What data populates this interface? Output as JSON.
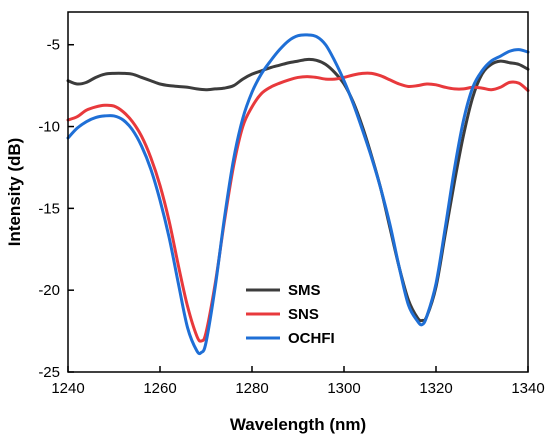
{
  "chart_data": {
    "type": "line",
    "title": "",
    "xlabel": "Wavelength (nm)",
    "ylabel": "Intensity (dB)",
    "xlim": [
      1240,
      1340
    ],
    "ylim": [
      -25,
      -3
    ],
    "xticks": [
      1240,
      1260,
      1280,
      1300,
      1320,
      1340
    ],
    "yticks": [
      -25,
      -20,
      -15,
      -10,
      -5
    ],
    "legend": "lower-center",
    "grid": false,
    "series": [
      {
        "name": "SMS",
        "color": "#3c3c3c",
        "x": [
          1240,
          1242,
          1244,
          1246,
          1248,
          1250,
          1252,
          1254,
          1256,
          1258,
          1260,
          1262,
          1264,
          1266,
          1268,
          1270,
          1272,
          1274,
          1276,
          1278,
          1280,
          1282,
          1284,
          1286,
          1288,
          1290,
          1292,
          1294,
          1296,
          1298,
          1300,
          1302,
          1304,
          1306,
          1308,
          1310,
          1312,
          1314,
          1316,
          1317,
          1318,
          1320,
          1322,
          1324,
          1326,
          1328,
          1330,
          1332,
          1334,
          1336,
          1338,
          1340
        ],
        "y": [
          -7.2,
          -7.4,
          -7.3,
          -7.0,
          -6.8,
          -6.75,
          -6.75,
          -6.8,
          -7.0,
          -7.2,
          -7.4,
          -7.5,
          -7.55,
          -7.6,
          -7.7,
          -7.75,
          -7.7,
          -7.65,
          -7.5,
          -7.1,
          -6.8,
          -6.6,
          -6.4,
          -6.25,
          -6.1,
          -6.0,
          -5.9,
          -5.95,
          -6.2,
          -6.7,
          -7.4,
          -8.5,
          -10.0,
          -11.8,
          -13.8,
          -16.2,
          -18.6,
          -20.6,
          -21.7,
          -21.85,
          -21.6,
          -19.8,
          -16.6,
          -13.4,
          -10.5,
          -8.2,
          -6.8,
          -6.2,
          -6.0,
          -6.1,
          -6.2,
          -6.5
        ]
      },
      {
        "name": "SNS",
        "color": "#e8393c",
        "x": [
          1240,
          1242,
          1244,
          1246,
          1248,
          1250,
          1252,
          1254,
          1256,
          1258,
          1260,
          1262,
          1264,
          1266,
          1268,
          1269,
          1270,
          1272,
          1274,
          1276,
          1278,
          1280,
          1282,
          1284,
          1286,
          1288,
          1290,
          1292,
          1294,
          1296,
          1298,
          1300,
          1302,
          1304,
          1306,
          1308,
          1310,
          1312,
          1314,
          1316,
          1318,
          1320,
          1322,
          1324,
          1326,
          1328,
          1330,
          1332,
          1334,
          1336,
          1338,
          1340
        ],
        "y": [
          -9.6,
          -9.4,
          -9.0,
          -8.8,
          -8.7,
          -8.75,
          -9.1,
          -9.7,
          -10.6,
          -11.9,
          -13.6,
          -15.8,
          -18.5,
          -21.0,
          -22.8,
          -23.1,
          -22.6,
          -19.6,
          -15.8,
          -12.4,
          -10.0,
          -8.8,
          -8.0,
          -7.6,
          -7.35,
          -7.15,
          -7.0,
          -6.95,
          -7.0,
          -7.1,
          -7.1,
          -7.0,
          -6.85,
          -6.75,
          -6.75,
          -6.9,
          -7.15,
          -7.4,
          -7.55,
          -7.5,
          -7.4,
          -7.45,
          -7.6,
          -7.7,
          -7.7,
          -7.6,
          -7.65,
          -7.75,
          -7.6,
          -7.3,
          -7.35,
          -7.8
        ]
      },
      {
        "name": "OCHFI",
        "color": "#1f6fd6",
        "x": [
          1240,
          1242,
          1244,
          1246,
          1248,
          1250,
          1252,
          1254,
          1256,
          1258,
          1260,
          1262,
          1264,
          1266,
          1268,
          1269,
          1270,
          1272,
          1274,
          1276,
          1278,
          1280,
          1282,
          1284,
          1286,
          1288,
          1290,
          1292,
          1294,
          1296,
          1298,
          1300,
          1302,
          1304,
          1306,
          1308,
          1310,
          1312,
          1314,
          1316,
          1317,
          1318,
          1320,
          1322,
          1324,
          1326,
          1328,
          1330,
          1332,
          1334,
          1336,
          1338,
          1340
        ],
        "y": [
          -10.7,
          -10.1,
          -9.7,
          -9.45,
          -9.35,
          -9.35,
          -9.6,
          -10.2,
          -11.2,
          -12.6,
          -14.5,
          -16.8,
          -19.6,
          -22.3,
          -23.7,
          -23.8,
          -23.2,
          -19.8,
          -15.6,
          -12.0,
          -9.5,
          -7.9,
          -6.8,
          -6.0,
          -5.3,
          -4.75,
          -4.45,
          -4.4,
          -4.5,
          -5.0,
          -6.0,
          -7.2,
          -8.6,
          -10.2,
          -11.9,
          -13.8,
          -16.0,
          -18.6,
          -20.9,
          -21.9,
          -22.1,
          -21.6,
          -19.6,
          -16.2,
          -12.6,
          -9.6,
          -7.6,
          -6.6,
          -6.0,
          -5.7,
          -5.4,
          -5.3,
          -5.45
        ]
      }
    ]
  }
}
